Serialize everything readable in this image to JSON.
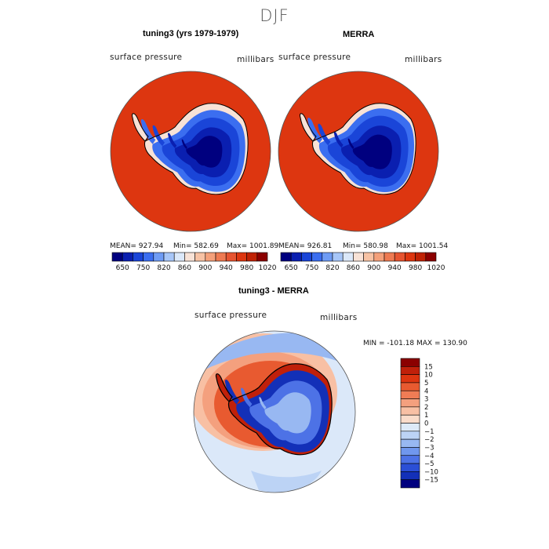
{
  "figure": {
    "title": "DJF"
  },
  "panels": [
    {
      "id": "model",
      "title": "tuning3 (yrs 1979-1979)",
      "left_label": "surface pressure",
      "right_label": "millibars",
      "stats": {
        "mean": "MEAN= 927.94",
        "min": "Min= 582.69",
        "max": "Max= 1001.89"
      }
    },
    {
      "id": "obs",
      "title": "MERRA",
      "left_label": "surface pressure",
      "right_label": "millibars",
      "stats": {
        "mean": "MEAN= 926.81",
        "min": "Min= 580.98",
        "max": "Max= 1001.54"
      }
    }
  ],
  "diff_panel": {
    "title": "tuning3 - MERRA",
    "left_label": "surface pressure",
    "right_label": "millibars",
    "minmax": "MIN = -101.18  MAX = 130.90"
  },
  "chart_data": [
    {
      "type": "heatmap",
      "title": "tuning3 (yrs 1979-1979)",
      "variable": "surface pressure",
      "units": "millibars",
      "mean": 927.94,
      "min": 582.69,
      "max": 1001.89,
      "colorbar_ticks": [
        "650",
        "750",
        "820",
        "860",
        "900",
        "940",
        "980",
        "1020"
      ],
      "colorbar_colors": [
        "#00007f",
        "#0a1fb0",
        "#1a45d8",
        "#3b6ef0",
        "#6f9cf5",
        "#a7c6f8",
        "#dbe8f9",
        "#f8e2d6",
        "#f7c2a4",
        "#f4a07a",
        "#ee7a52",
        "#e65430",
        "#dd3610",
        "#c02205",
        "#8b0000"
      ]
    },
    {
      "type": "heatmap",
      "title": "MERRA",
      "variable": "surface pressure",
      "units": "millibars",
      "mean": 926.81,
      "min": 580.98,
      "max": 1001.54,
      "colorbar_ticks": [
        "650",
        "750",
        "820",
        "860",
        "900",
        "940",
        "980",
        "1020"
      ],
      "colorbar_colors": [
        "#00007f",
        "#0a1fb0",
        "#1a45d8",
        "#3b6ef0",
        "#6f9cf5",
        "#a7c6f8",
        "#dbe8f9",
        "#f8e2d6",
        "#f7c2a4",
        "#f4a07a",
        "#ee7a52",
        "#e65430",
        "#dd3610",
        "#c02205",
        "#8b0000"
      ]
    },
    {
      "type": "heatmap",
      "title": "tuning3 - MERRA",
      "variable": "surface pressure",
      "units": "millibars",
      "min": -101.18,
      "max": 130.9,
      "colorbar_ticks": [
        "15",
        "10",
        "5",
        "4",
        "3",
        "2",
        "1",
        "0",
        "-1",
        "-2",
        "-3",
        "-4",
        "-5",
        "-10",
        "-15"
      ],
      "colorbar_colors": [
        "#8b0000",
        "#c0200a",
        "#dd3510",
        "#e85a30",
        "#f07c55",
        "#f4a07e",
        "#f8c0a4",
        "#fadcca",
        "#ddeaf8",
        "#bcd3f5",
        "#98b8f2",
        "#7097ee",
        "#4d72e6",
        "#2b4fd6",
        "#1330b8",
        "#00007f"
      ]
    }
  ]
}
